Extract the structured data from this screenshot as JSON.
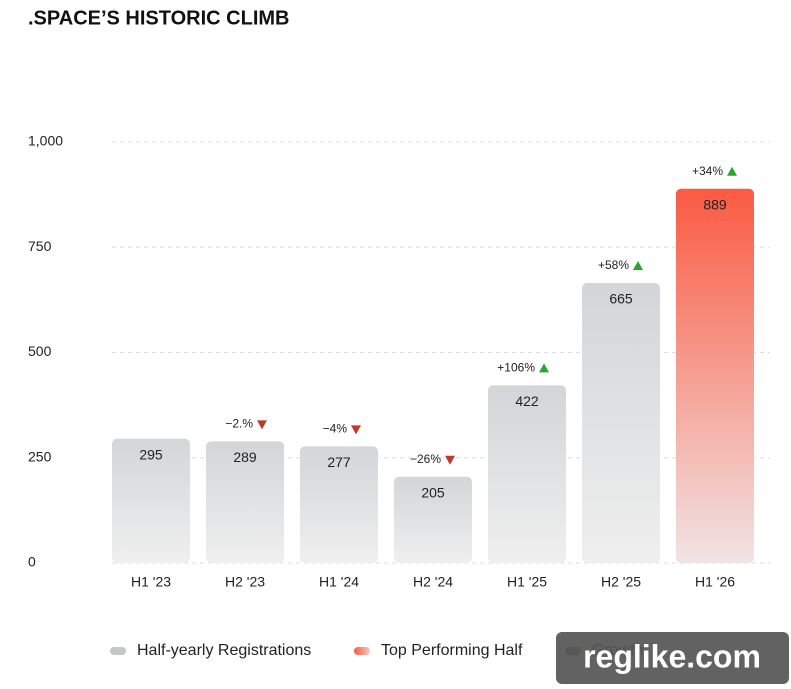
{
  "chart_data": {
    "type": "bar",
    "title": ".SPACE’S HISTORIC CLIMB",
    "categories": [
      "H1 '23",
      "H2 '23",
      "H1 '24",
      "H2 '24",
      "H1 '25",
      "H2 '25",
      "H1 '26"
    ],
    "values": [
      295,
      289,
      277,
      205,
      422,
      665,
      889
    ],
    "annotations": [
      null,
      "−2.%",
      "−4%",
      "−26%",
      "+106%",
      "+58%",
      "+34%"
    ],
    "ylim": [
      0,
      1000
    ],
    "yticks": [
      0,
      250,
      500,
      750,
      {
        "value": 1000,
        "label": "1,000"
      }
    ],
    "grid": true,
    "legend": [
      "Half-yearly Registrations",
      "Top Performing Half",
      "Growth"
    ],
    "colors": {
      "bar": "#d3d5d8",
      "top": "#fa5a42",
      "up": "#2aa52e",
      "down": "#c0392b"
    },
    "watermark": "reglike.com"
  }
}
